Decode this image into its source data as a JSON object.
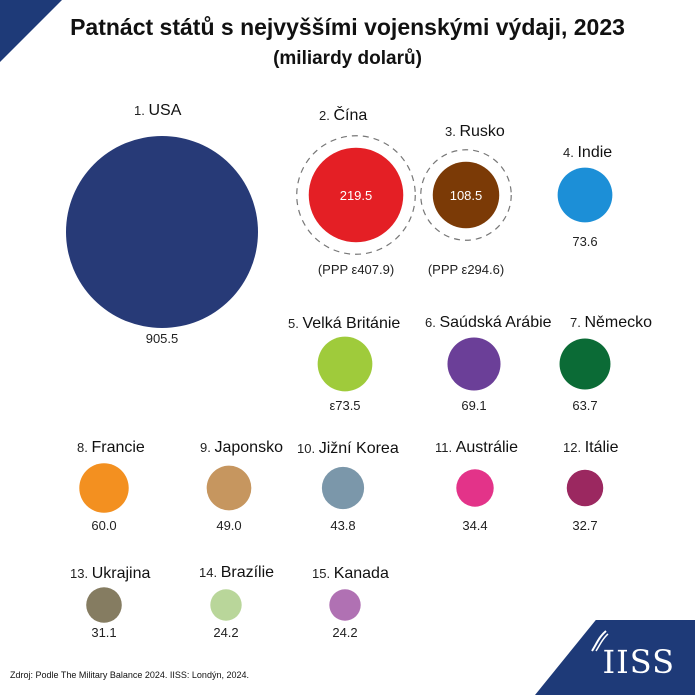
{
  "title": "Patnáct států s nejvyššími vojenskými výdaji, 2023",
  "subtitle": "(miliardy dolarů)",
  "source": "Zdroj: Podle The Military Balance 2024. IISS: Londýn, 2024.",
  "logo": "IISS",
  "chart_data": {
    "type": "bubble",
    "title": "Patnáct států s nejvyššími vojenskými výdaji, 2023",
    "unit": "miliardy dolarů",
    "items": [
      {
        "rank": "1.",
        "name": "USA",
        "value": 905.5,
        "value_label": "905.5",
        "color": "#273a77",
        "inside": false,
        "ppp": null
      },
      {
        "rank": "2.",
        "name": "Čína",
        "value": 219.5,
        "value_label": "219.5",
        "color": "#e41f25",
        "inside": true,
        "ppp": "(PPP ε407.9)"
      },
      {
        "rank": "3.",
        "name": "Rusko",
        "value": 108.5,
        "value_label": "108.5",
        "color": "#7b3a06",
        "inside": true,
        "ppp": "(PPP ε294.6)"
      },
      {
        "rank": "4.",
        "name": "Indie",
        "value": 73.6,
        "value_label": "73.6",
        "color": "#1c8fd7",
        "inside": false,
        "ppp": null
      },
      {
        "rank": "5.",
        "name": "Velká Británie",
        "value": 73.5,
        "value_label": "ε73.5",
        "color": "#9fcb3b",
        "inside": false,
        "ppp": null
      },
      {
        "rank": "6.",
        "name": "Saúdská Arábie",
        "value": 69.1,
        "value_label": "69.1",
        "color": "#6b3f98",
        "inside": false,
        "ppp": null
      },
      {
        "rank": "7.",
        "name": "Německo",
        "value": 63.7,
        "value_label": "63.7",
        "color": "#0b6b36",
        "inside": false,
        "ppp": null
      },
      {
        "rank": "8.",
        "name": "Francie",
        "value": 60.0,
        "value_label": "60.0",
        "color": "#f39020",
        "inside": false,
        "ppp": null
      },
      {
        "rank": "9.",
        "name": "Japonsko",
        "value": 49.0,
        "value_label": "49.0",
        "color": "#c6965f",
        "inside": false,
        "ppp": null
      },
      {
        "rank": "10.",
        "name": "Jižní Korea",
        "value": 43.8,
        "value_label": "43.8",
        "color": "#7b97aa",
        "inside": false,
        "ppp": null
      },
      {
        "rank": "11.",
        "name": "Austrálie",
        "value": 34.4,
        "value_label": "34.4",
        "color": "#e33389",
        "inside": false,
        "ppp": null
      },
      {
        "rank": "12.",
        "name": "Itálie",
        "value": 32.7,
        "value_label": "32.7",
        "color": "#9b2860",
        "inside": false,
        "ppp": null
      },
      {
        "rank": "13.",
        "name": "Ukrajina",
        "value": 31.1,
        "value_label": "31.1",
        "color": "#857c61",
        "inside": false,
        "ppp": null
      },
      {
        "rank": "14.",
        "name": "Brazílie",
        "value": 24.2,
        "value_label": "24.2",
        "color": "#b9d69a",
        "inside": false,
        "ppp": null
      },
      {
        "rank": "15.",
        "name": "Kanada",
        "value": 24.2,
        "value_label": "24.2",
        "color": "#b071b3",
        "inside": false,
        "ppp": null
      }
    ]
  }
}
